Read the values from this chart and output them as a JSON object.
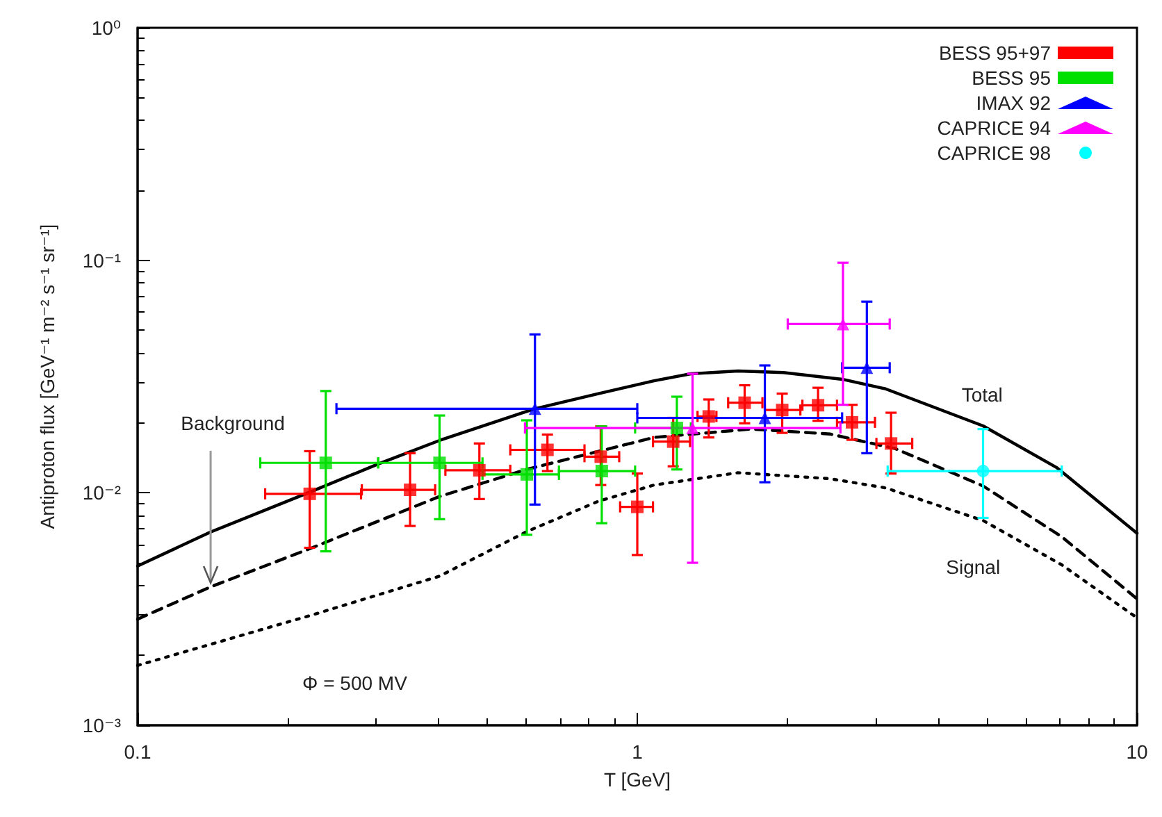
{
  "chart_data": {
    "type": "scatter",
    "xlabel": "T [GeV]",
    "ylabel": "Antiproton flux [GeV⁻¹ m⁻² s⁻¹ sr⁻¹]",
    "log": "xy",
    "xlim": [
      0.1,
      10
    ],
    "ylim": [
      0.001,
      1
    ],
    "xticks": [
      0.1,
      1,
      10
    ],
    "yticks": [
      {
        "value": 0.001,
        "label": "10⁻³"
      },
      {
        "value": 0.01,
        "label": "10⁻²"
      },
      {
        "value": 0.1,
        "label": "10⁻¹"
      },
      {
        "value": 1,
        "label": "10⁰"
      }
    ],
    "grid": false,
    "legend": "top right",
    "annotations": [
      "Φ = 500 MV",
      {
        "text": "Background",
        "x": 0.14,
        "y": 0.0041
      }
    ],
    "series": [
      {
        "name": "BESS 95+97",
        "color": "#ff0000",
        "marker": "square",
        "x": [
          0.221,
          0.351,
          0.483,
          0.661,
          0.845,
          1.0,
          1.18,
          1.39,
          1.64,
          1.95,
          2.3,
          2.69,
          3.22
        ],
        "values": [
          0.0099,
          0.0103,
          0.0125,
          0.0153,
          0.0143,
          0.0087,
          0.0166,
          0.0213,
          0.0244,
          0.0227,
          0.0238,
          0.0201,
          0.0163
        ],
        "errors": [
          [
            0.0058,
            0.0151
          ],
          [
            0.0072,
            0.0148
          ],
          [
            0.0094,
            0.0163
          ],
          [
            0.0124,
            0.0178
          ],
          [
            0.0108,
            0.0193
          ],
          [
            0.0054,
            0.0121
          ],
          [
            0.013,
            0.021
          ],
          [
            0.0173,
            0.0252
          ],
          [
            0.0199,
            0.029
          ],
          [
            0.0181,
            0.0267
          ],
          [
            0.0204,
            0.0283
          ],
          [
            0.0169,
            0.0239
          ],
          [
            0.0121,
            0.0221
          ]
        ],
        "xerrors": [
          [
            0.18,
            0.28
          ],
          [
            0.281,
            0.394
          ],
          [
            0.413,
            0.557
          ],
          [
            0.557,
            0.784
          ],
          [
            0.784,
            0.92
          ],
          [
            0.924,
            1.075
          ],
          [
            1.075,
            1.275
          ],
          [
            1.32,
            1.44
          ],
          [
            1.52,
            1.78
          ],
          [
            1.8,
            2.12
          ],
          [
            2.14,
            2.51
          ],
          [
            2.51,
            2.99
          ],
          [
            3.01,
            3.55
          ]
        ]
      },
      {
        "name": "BESS 95",
        "color": "#00e000",
        "marker": "square",
        "x": [
          0.238,
          0.402,
          0.601,
          0.849,
          1.2
        ],
        "values": [
          0.01345,
          0.01345,
          0.012,
          0.0124,
          0.019
        ],
        "errors": [
          [
            0.0056,
            0.0274
          ],
          [
            0.0077,
            0.0215
          ],
          [
            0.0066,
            0.0205
          ],
          [
            0.0074,
            0.0193
          ],
          [
            0.0126,
            0.0259
          ]
        ],
        "xerrors": [
          [
            0.176,
            0.303
          ],
          [
            0.303,
            0.49
          ],
          [
            0.49,
            0.697
          ],
          [
            0.697,
            0.99
          ],
          [
            0.99,
            1.28
          ]
        ]
      },
      {
        "name": "IMAX 92",
        "color": "#0000ff",
        "marker": "triangle",
        "x": [
          0.624,
          1.8,
          2.88
        ],
        "values": [
          0.023,
          0.021,
          0.0345
        ],
        "errors": [
          [
            0.0089,
            0.048
          ],
          [
            0.0111,
            0.0353
          ],
          [
            0.0148,
            0.0664
          ]
        ],
        "xerrors": [
          [
            0.25,
            1.0
          ],
          [
            1.0,
            2.57
          ],
          [
            2.57,
            3.2
          ]
        ]
      },
      {
        "name": "CAPRICE 94",
        "color": "#ff00ff",
        "marker": "triangle",
        "x": [
          1.29,
          2.58
        ],
        "values": [
          0.019,
          0.0532
        ],
        "errors": [
          [
            0.005,
            0.0325
          ],
          [
            0.0239,
            0.0976
          ]
        ],
        "xerrors": [
          [
            0.596,
            2.55
          ],
          [
            2.0,
            3.2
          ]
        ]
      },
      {
        "name": "CAPRICE 98",
        "color": "#00ffff",
        "marker": "circle",
        "x": [
          4.92
        ],
        "values": [
          0.0124
        ],
        "errors": [
          [
            0.0078,
            0.0188
          ]
        ],
        "xerrors": [
          [
            3.17,
            7.07
          ]
        ]
      },
      {
        "name": "Total",
        "type": "line",
        "color": "#000000",
        "marker": "none",
        "line_style": "solid",
        "x": [
          0.1,
          0.14,
          0.222,
          0.303,
          0.402,
          0.624,
          0.836,
          1.08,
          1.28,
          1.59,
          1.96,
          2.59,
          3.14,
          4.92,
          6.92,
          10
        ],
        "values": [
          0.00484,
          0.00678,
          0.0101,
          0.0133,
          0.0168,
          0.023,
          0.0267,
          0.0303,
          0.0325,
          0.0334,
          0.0329,
          0.0307,
          0.028,
          0.0194,
          0.0128,
          0.0067
        ]
      },
      {
        "type": "line",
        "color": "#000000",
        "marker": "none",
        "line_style": "dashed",
        "x": [
          0.1,
          0.14,
          0.222,
          0.402,
          0.6,
          1.08,
          1.69,
          2.43,
          3.28,
          4.92,
          7.07,
          10
        ],
        "values": [
          0.00286,
          0.00394,
          0.00577,
          0.00964,
          0.0126,
          0.0173,
          0.0188,
          0.0179,
          0.0155,
          0.0107,
          0.00647,
          0.0035
        ]
      },
      {
        "name": "Signal",
        "type": "line",
        "color": "#000000",
        "marker": "none",
        "line_style": "dotted",
        "x": [
          0.1,
          0.222,
          0.402,
          0.6,
          0.836,
          1.08,
          1.59,
          2.43,
          3.14,
          4.92,
          7.07,
          10
        ],
        "values": [
          0.00181,
          0.00297,
          0.00438,
          0.0068,
          0.0092,
          0.0108,
          0.0122,
          0.0115,
          0.0105,
          0.0076,
          0.0049,
          0.0029
        ]
      }
    ]
  }
}
